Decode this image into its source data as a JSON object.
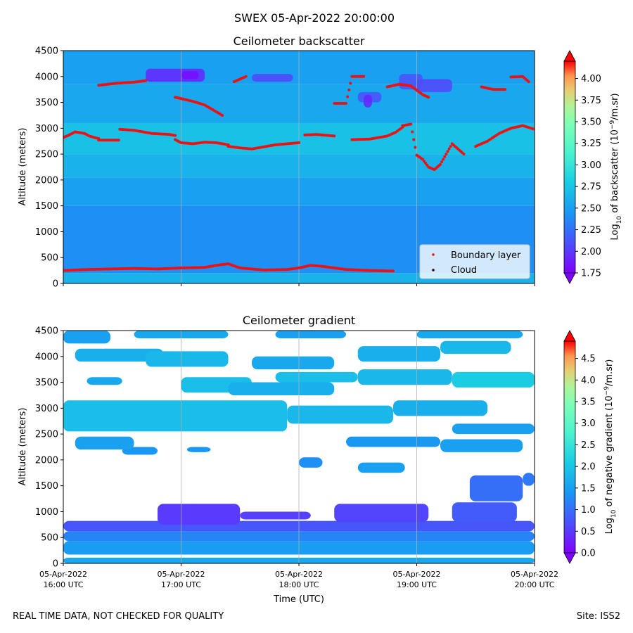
{
  "suptitle": "SWEX 05-Apr-2022 20:00:00",
  "footer": {
    "left": "REAL TIME DATA, NOT CHECKED FOR QUALITY",
    "right": "Site: ISS2"
  },
  "colors": {
    "bl": "#ee1111",
    "cloud": "#000000",
    "grid": "#b0b0b0"
  },
  "chart_data": [
    {
      "type": "heatmap",
      "title": "Ceilometer backscatter",
      "xlabel": "",
      "ylabel": "Altitude (meters)",
      "xlim": [
        0,
        4
      ],
      "ylim": [
        0,
        4500
      ],
      "grid": "x",
      "x_tick_values": [
        0,
        1,
        2,
        3,
        4
      ],
      "y_ticks": [
        0,
        500,
        1000,
        1500,
        2000,
        2500,
        3000,
        3500,
        4000,
        4500
      ],
      "colorbar": {
        "label": "Log10 of backscatter (10^-9/m.sr)",
        "label_main": "Log",
        "label_sub": "10",
        "label_rest": " of backscatter (10",
        "label_sup": "−9",
        "label_end": "/m.sr)",
        "range": [
          1.75,
          4.2
        ],
        "ticks": [
          "1.75",
          "2.00",
          "2.25",
          "2.50",
          "2.75",
          "3.00",
          "3.25",
          "3.50",
          "3.75",
          "4.00"
        ],
        "extend": "both"
      },
      "background_bands": [
        {
          "from": 0,
          "to": 200,
          "value": 2.62
        },
        {
          "from": 200,
          "to": 1500,
          "value": 2.4
        },
        {
          "from": 1500,
          "to": 2050,
          "value": 2.5
        },
        {
          "from": 2050,
          "to": 2500,
          "value": 2.62
        },
        {
          "from": 2500,
          "to": 3100,
          "value": 2.72
        },
        {
          "from": 3100,
          "to": 3850,
          "value": 2.55
        },
        {
          "from": 3850,
          "to": 4500,
          "value": 2.5
        }
      ],
      "patches": [
        {
          "x0": 0.7,
          "x1": 1.2,
          "y0": 3900,
          "y1": 4150,
          "value": 1.9
        },
        {
          "x0": 1.0,
          "x1": 1.15,
          "y0": 3950,
          "y1": 4100,
          "value": 1.8
        },
        {
          "x0": 1.6,
          "x1": 1.95,
          "y0": 3900,
          "y1": 4050,
          "value": 2.05
        },
        {
          "x0": 2.5,
          "x1": 2.7,
          "y0": 3500,
          "y1": 3700,
          "value": 2.1
        },
        {
          "x0": 2.55,
          "x1": 2.62,
          "y0": 3400,
          "y1": 3650,
          "value": 1.9
        },
        {
          "x0": 3.0,
          "x1": 3.3,
          "y0": 3700,
          "y1": 3950,
          "value": 2.05
        },
        {
          "x0": 2.85,
          "x1": 3.05,
          "y0": 3750,
          "y1": 4050,
          "value": 2.1
        }
      ],
      "series": [
        {
          "name": "Boundary layer",
          "segments": [
            {
              "x": [
                0.0,
                0.05,
                0.1,
                0.18,
                0.22,
                0.3
              ],
              "y": [
                2820,
                2870,
                2930,
                2900,
                2850,
                2800
              ]
            },
            {
              "x": [
                0.3,
                0.47
              ],
              "y": [
                2770,
                2770
              ]
            },
            {
              "x": [
                0.48,
                0.6,
                0.75,
                0.9,
                0.95
              ],
              "y": [
                2980,
                2960,
                2900,
                2880,
                2860
              ]
            },
            {
              "x": [
                0.95,
                1.0,
                1.1,
                1.2,
                1.3,
                1.4
              ],
              "y": [
                2780,
                2720,
                2700,
                2730,
                2720,
                2680
              ]
            },
            {
              "x": [
                1.4,
                1.5,
                1.6,
                1.7,
                1.8,
                1.9,
                2.0
              ],
              "y": [
                2650,
                2620,
                2600,
                2640,
                2680,
                2700,
                2720
              ]
            },
            {
              "x": [
                2.05,
                2.15,
                2.3
              ],
              "y": [
                2870,
                2880,
                2850
              ]
            },
            {
              "x": [
                2.45,
                2.6,
                2.75,
                2.82,
                2.88
              ],
              "y": [
                2780,
                2790,
                2850,
                2920,
                3020
              ]
            },
            {
              "x": [
                2.88,
                2.95,
                3.0,
                3.05,
                3.1,
                3.15,
                3.2,
                3.25,
                3.3,
                3.35,
                3.4
              ],
              "y": [
                3050,
                3080,
                2480,
                2400,
                2250,
                2200,
                2300,
                2500,
                2700,
                2600,
                2500
              ]
            },
            {
              "x": [
                3.5,
                3.6,
                3.7,
                3.8,
                3.9,
                4.0
              ],
              "y": [
                2650,
                2750,
                2900,
                3000,
                3050,
                2980
              ]
            },
            {
              "x": [
                0.3,
                0.45,
                0.6,
                0.7
              ],
              "y": [
                3830,
                3870,
                3890,
                3920
              ]
            },
            {
              "x": [
                0.95,
                1.1,
                1.2,
                1.35
              ],
              "y": [
                3600,
                3520,
                3450,
                3250
              ]
            },
            {
              "x": [
                1.45,
                1.55
              ],
              "y": [
                3900,
                4000
              ]
            },
            {
              "x": [
                2.3,
                2.4,
                2.45,
                2.55
              ],
              "y": [
                3480,
                3480,
                4000,
                4000
              ]
            },
            {
              "x": [
                2.75,
                2.85,
                2.95,
                3.05,
                3.1
              ],
              "y": [
                3800,
                3850,
                3820,
                3650,
                3600
              ]
            },
            {
              "x": [
                3.55,
                3.65,
                3.75
              ],
              "y": [
                3800,
                3750,
                3750
              ]
            },
            {
              "x": [
                3.8,
                3.9,
                3.95
              ],
              "y": [
                3990,
                4000,
                3900
              ]
            },
            {
              "x": [
                0.0,
                0.2,
                0.4,
                0.6,
                0.8,
                1.0,
                1.2,
                1.3,
                1.4,
                1.5,
                1.7,
                1.9,
                2.0,
                2.1,
                2.2,
                2.4,
                2.6,
                2.8
              ],
              "y": [
                250,
                270,
                280,
                290,
                280,
                300,
                310,
                350,
                380,
                300,
                260,
                270,
                300,
                350,
                330,
                270,
                250,
                240
              ]
            }
          ]
        },
        {
          "name": "Cloud",
          "segments": []
        }
      ],
      "legend": {
        "position": "lower right",
        "entries": [
          "Boundary layer",
          "Cloud"
        ]
      }
    },
    {
      "type": "heatmap",
      "title": "Ceilometer gradient",
      "xlabel": "Time (UTC)",
      "ylabel": "Altitude (meters)",
      "xlim": [
        0,
        4
      ],
      "ylim": [
        0,
        4500
      ],
      "grid": "x",
      "x_ticks": [
        {
          "value": 0,
          "line1": "05-Apr-2022",
          "line2": "16:00 UTC"
        },
        {
          "value": 1,
          "line1": "05-Apr-2022",
          "line2": "17:00 UTC"
        },
        {
          "value": 2,
          "line1": "05-Apr-2022",
          "line2": "18:00 UTC"
        },
        {
          "value": 3,
          "line1": "05-Apr-2022",
          "line2": "19:00 UTC"
        },
        {
          "value": 4,
          "line1": "05-Apr-2022",
          "line2": "20:00 UTC"
        }
      ],
      "y_ticks": [
        0,
        500,
        1000,
        1500,
        2000,
        2500,
        3000,
        3500,
        4000,
        4500
      ],
      "colorbar": {
        "label_main": "Log",
        "label_sub": "10",
        "label_rest": " of negative gradient (10",
        "label_sup": "−9",
        "label_end": "/m.sr)",
        "range": [
          0.0,
          4.9
        ],
        "ticks": [
          "0.0",
          "0.5",
          "1.0",
          "1.5",
          "2.0",
          "2.5",
          "3.0",
          "3.5",
          "4.0",
          "4.5"
        ],
        "extend": "both"
      },
      "blobs": [
        {
          "x0": 0.0,
          "x1": 4.0,
          "y0": 0,
          "y1": 110,
          "value": 1.6
        },
        {
          "x0": 0.0,
          "x1": 4.0,
          "y0": 170,
          "y1": 430,
          "value": 1.45
        },
        {
          "x0": 0.0,
          "x1": 4.0,
          "y0": 430,
          "y1": 620,
          "value": 1.2
        },
        {
          "x0": 0.0,
          "x1": 4.0,
          "y0": 620,
          "y1": 820,
          "value": 0.75
        },
        {
          "x0": 0.8,
          "x1": 1.5,
          "y0": 750,
          "y1": 1150,
          "value": 0.5
        },
        {
          "x0": 1.5,
          "x1": 2.1,
          "y0": 850,
          "y1": 1000,
          "value": 0.55
        },
        {
          "x0": 2.3,
          "x1": 3.1,
          "y0": 800,
          "y1": 1150,
          "value": 0.6
        },
        {
          "x0": 3.3,
          "x1": 3.85,
          "y0": 800,
          "y1": 1180,
          "value": 0.8
        },
        {
          "x0": 3.45,
          "x1": 3.9,
          "y0": 1200,
          "y1": 1700,
          "value": 1.0
        },
        {
          "x0": 3.9,
          "x1": 4.0,
          "y0": 1500,
          "y1": 1750,
          "value": 1.1
        },
        {
          "x0": 0.5,
          "x1": 0.8,
          "y0": 2100,
          "y1": 2250,
          "value": 1.4
        },
        {
          "x0": 1.05,
          "x1": 1.25,
          "y0": 2150,
          "y1": 2250,
          "value": 1.4
        },
        {
          "x0": 2.0,
          "x1": 2.2,
          "y0": 1850,
          "y1": 2050,
          "value": 1.3
        },
        {
          "x0": 2.5,
          "x1": 2.9,
          "y0": 1750,
          "y1": 1950,
          "value": 1.5
        },
        {
          "x0": 2.4,
          "x1": 3.2,
          "y0": 2250,
          "y1": 2450,
          "value": 1.4
        },
        {
          "x0": 3.2,
          "x1": 3.9,
          "y0": 2150,
          "y1": 2400,
          "value": 1.5
        },
        {
          "x0": 0.0,
          "x1": 1.9,
          "y0": 2550,
          "y1": 3150,
          "value": 1.9
        },
        {
          "x0": 0.1,
          "x1": 0.6,
          "y0": 2200,
          "y1": 2450,
          "value": 1.5
        },
        {
          "x0": 1.9,
          "x1": 2.8,
          "y0": 2700,
          "y1": 3050,
          "value": 1.8
        },
        {
          "x0": 2.8,
          "x1": 3.6,
          "y0": 2850,
          "y1": 3150,
          "value": 1.7
        },
        {
          "x0": 3.3,
          "x1": 4.0,
          "y0": 2500,
          "y1": 2700,
          "value": 1.5
        },
        {
          "x0": 0.2,
          "x1": 0.5,
          "y0": 3450,
          "y1": 3600,
          "value": 1.6
        },
        {
          "x0": 1.0,
          "x1": 1.6,
          "y0": 3300,
          "y1": 3600,
          "value": 1.9
        },
        {
          "x0": 1.4,
          "x1": 2.3,
          "y0": 3250,
          "y1": 3500,
          "value": 1.7
        },
        {
          "x0": 1.8,
          "x1": 2.5,
          "y0": 3500,
          "y1": 3700,
          "value": 1.9
        },
        {
          "x0": 2.5,
          "x1": 3.3,
          "y0": 3450,
          "y1": 3750,
          "value": 1.8
        },
        {
          "x0": 3.3,
          "x1": 4.0,
          "y0": 3400,
          "y1": 3700,
          "value": 2.1
        },
        {
          "x0": 0.1,
          "x1": 0.85,
          "y0": 3900,
          "y1": 4150,
          "value": 1.7
        },
        {
          "x0": 0.7,
          "x1": 1.4,
          "y0": 3800,
          "y1": 4100,
          "value": 1.8
        },
        {
          "x0": 1.6,
          "x1": 2.3,
          "y0": 3750,
          "y1": 4000,
          "value": 1.6
        },
        {
          "x0": 2.5,
          "x1": 3.2,
          "y0": 3900,
          "y1": 4200,
          "value": 1.7
        },
        {
          "x0": 3.2,
          "x1": 3.8,
          "y0": 4050,
          "y1": 4300,
          "value": 1.8
        },
        {
          "x0": 0.0,
          "x1": 0.4,
          "y0": 4250,
          "y1": 4500,
          "value": 1.5
        },
        {
          "x0": 0.6,
          "x1": 1.4,
          "y0": 4350,
          "y1": 4500,
          "value": 1.6
        },
        {
          "x0": 1.8,
          "x1": 2.4,
          "y0": 4350,
          "y1": 4500,
          "value": 1.5
        },
        {
          "x0": 3.0,
          "x1": 3.9,
          "y0": 4350,
          "y1": 4500,
          "value": 1.6
        }
      ]
    }
  ]
}
